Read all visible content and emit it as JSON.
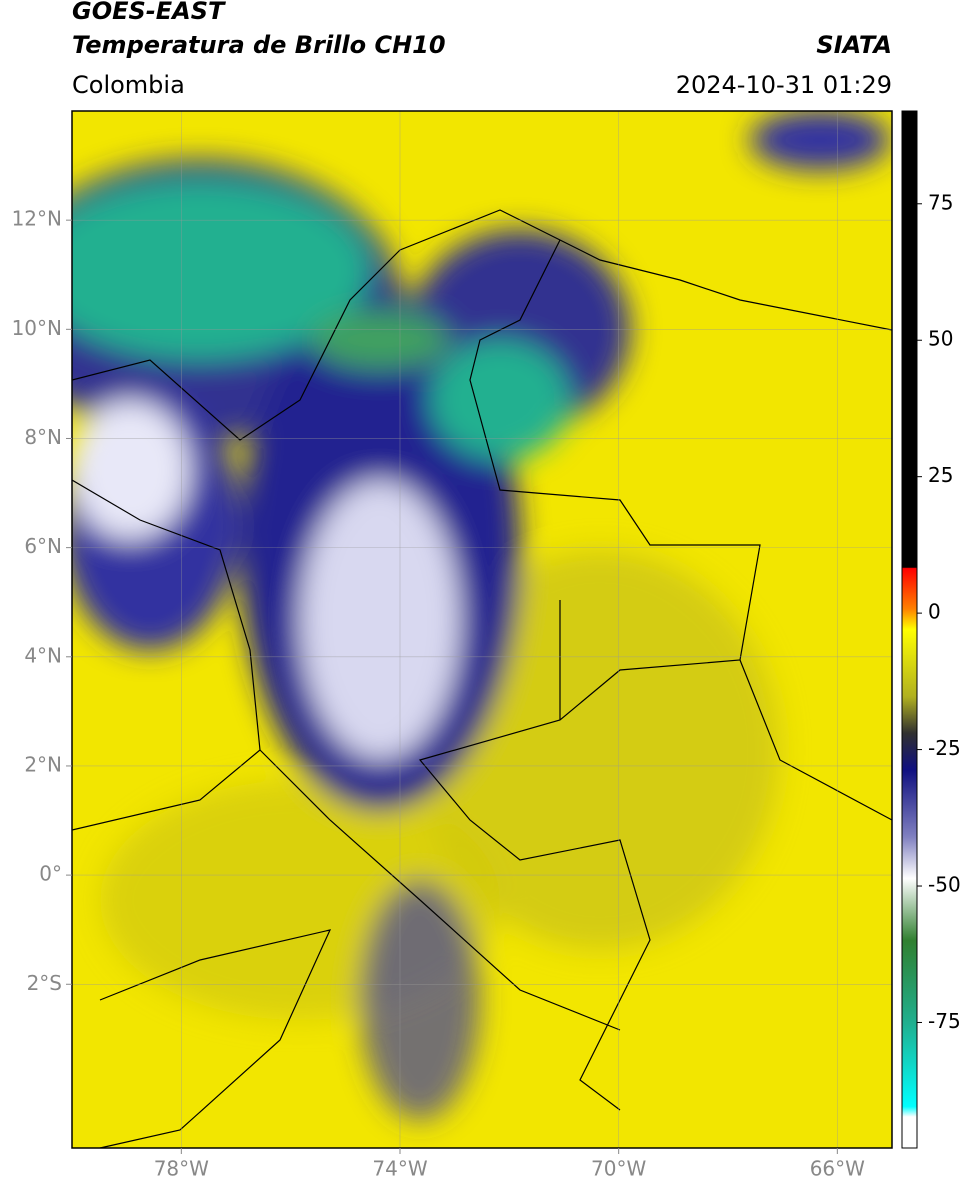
{
  "header": {
    "title": "GOES-EAST",
    "subtitle": "Temperatura de Brillo CH10",
    "source": "SIATA",
    "region": "Colombia",
    "datetime": "2024-10-31 01:29"
  },
  "map": {
    "lon_range": [
      -80,
      -65
    ],
    "lat_range": [
      -5,
      14
    ],
    "lon_ticks": [
      {
        "value": -78,
        "label": "78°W"
      },
      {
        "value": -74,
        "label": "74°W"
      },
      {
        "value": -70,
        "label": "70°W"
      },
      {
        "value": -66,
        "label": "66°W"
      }
    ],
    "lat_ticks": [
      {
        "value": 12,
        "label": "12°N"
      },
      {
        "value": 10,
        "label": "10°N"
      },
      {
        "value": 8,
        "label": "8°N"
      },
      {
        "value": 6,
        "label": "6°N"
      },
      {
        "value": 4,
        "label": "4°N"
      },
      {
        "value": 2,
        "label": "2°N"
      },
      {
        "value": 0,
        "label": "0°"
      },
      {
        "value": -2,
        "label": "2°S"
      }
    ]
  },
  "colorbar": {
    "range": [
      -98,
      92
    ],
    "ticks": [
      75,
      50,
      25,
      0,
      -25,
      -50,
      -75
    ]
  }
}
